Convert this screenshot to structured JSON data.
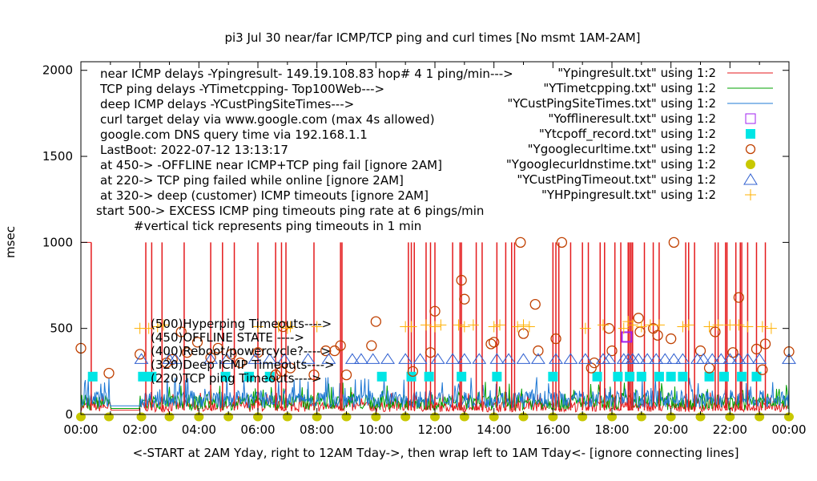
{
  "chart_data": {
    "type": "line",
    "title": "pi3 Jul 30  near/far ICMP/TCP ping and curl times [No msmt 1AM-2AM]",
    "xlabel": "<-START at 2AM Yday, right to 12AM Tday->, then wrap left to 1AM Tday<- [ignore connecting lines]",
    "ylabel": "msec",
    "xlim_hours": [
      0,
      24
    ],
    "ylim": [
      0,
      2050
    ],
    "y_ticks": [
      0,
      500,
      1000,
      1500,
      2000
    ],
    "x_ticks": [
      "00:00",
      "02:00",
      "04:00",
      "06:00",
      "08:00",
      "10:00",
      "12:00",
      "14:00",
      "16:00",
      "18:00",
      "20:00",
      "22:00",
      "00:00"
    ],
    "grid": false,
    "legend_position": "top-right",
    "annotations": [
      "near ICMP delays -Ypingresult- 149.19.108.83 hop# 4 1 ping/min--->",
      "TCP ping delays -YTimetcpping- Top100Web--->",
      "deep ICMP delays -YCustPingSiteTimes--->",
      "curl target delay via www.google.com (max 4s allowed)",
      "google.com DNS query time via 192.168.1.1",
      "LastBoot: 2022-07-12 13:13:17",
      "at 450-> -OFFLINE near ICMP+TCP ping fail [ignore 2AM]",
      "at 220-> TCP ping failed while online [ignore 2AM]",
      "at 320-> deep (customer) ICMP timeouts [ignore 2AM]",
      "start 500-> EXCESS ICMP ping timeouts ping rate at 6 pings/min",
      "#vertical tick represents ping timeouts in 1 min"
    ],
    "inline_labels": [
      "(500)Hyperping Timeouts---->",
      "(450)OFFLINE STATE ---->",
      "(400)Reboot/powercycle?---->",
      "(320)Deep ICMP Timeouts---->",
      "(220)TCP ping Timeouts---->"
    ],
    "series": [
      {
        "name": "\"Ypingresult.txt\" using 1:2",
        "style": "line",
        "color": "#e41a1c",
        "spike_hours_to_1000": [
          0.35,
          2.2,
          2.4,
          2.75,
          3.5,
          4.4,
          4.8,
          5.2,
          6.0,
          6.6,
          6.8,
          6.95,
          7.9,
          8.8,
          8.85,
          11.1,
          11.2,
          11.3,
          11.7,
          11.85,
          12.0,
          12.6,
          12.85,
          12.9,
          13.4,
          13.6,
          14.1,
          14.4,
          14.6,
          14.7,
          16.0,
          16.1,
          16.2,
          16.6,
          17.0,
          17.2,
          17.6,
          17.75,
          18.1,
          18.3,
          18.55,
          18.6,
          18.65,
          18.7,
          19.1,
          19.4,
          19.6,
          20.5,
          20.6,
          20.8,
          21.5,
          21.6,
          21.85,
          21.9,
          22.2,
          22.35,
          22.4,
          22.6,
          22.9,
          23.2
        ],
        "baseline_range_ms": [
          20,
          150
        ]
      },
      {
        "name": "\"YTimetcpping.txt\" using 1:2",
        "style": "line",
        "color": "#00a000",
        "baseline_range_ms": [
          20,
          200
        ]
      },
      {
        "name": "\"YCustPingSiteTimes.txt\" using 1:2",
        "style": "line",
        "color": "#1f78d4",
        "baseline_range_ms": [
          30,
          230
        ]
      },
      {
        "name": "\"Yofflineresult.txt\" using 1:2",
        "style": "open-square",
        "color": "#a020f0",
        "points": [
          [
            18.5,
            450
          ]
        ]
      },
      {
        "name": "\"Ytcpoff_record.txt\" using 1:2",
        "style": "filled-square",
        "color": "#00e5e5",
        "points": [
          [
            0.4,
            220
          ],
          [
            2.1,
            220
          ],
          [
            2.4,
            220
          ],
          [
            4.9,
            220
          ],
          [
            5.7,
            220
          ],
          [
            6.4,
            220
          ],
          [
            10.2,
            220
          ],
          [
            11.2,
            220
          ],
          [
            11.8,
            220
          ],
          [
            12.9,
            220
          ],
          [
            14.1,
            220
          ],
          [
            16.0,
            220
          ],
          [
            17.5,
            220
          ],
          [
            18.2,
            220
          ],
          [
            18.6,
            220
          ],
          [
            19.0,
            220
          ],
          [
            19.6,
            220
          ],
          [
            20.0,
            220
          ],
          [
            20.4,
            220
          ],
          [
            21.3,
            220
          ],
          [
            21.8,
            220
          ],
          [
            22.4,
            220
          ],
          [
            22.9,
            220
          ]
        ]
      },
      {
        "name": "\"Ygooglecurltime.txt\" using 1:2",
        "style": "open-circle",
        "color": "#c04000",
        "points": [
          [
            0,
            385
          ],
          [
            0.95,
            240
          ],
          [
            2.0,
            350
          ],
          [
            2.9,
            300
          ],
          [
            3.1,
            320
          ],
          [
            3.4,
            480
          ],
          [
            3.6,
            360
          ],
          [
            3.95,
            420
          ],
          [
            4.4,
            330
          ],
          [
            4.65,
            385
          ],
          [
            5.1,
            350
          ],
          [
            5.4,
            300
          ],
          [
            6.0,
            360
          ],
          [
            6.6,
            230
          ],
          [
            6.8,
            250
          ],
          [
            6.85,
            510
          ],
          [
            7.1,
            270
          ],
          [
            7.9,
            230
          ],
          [
            8.3,
            370
          ],
          [
            8.6,
            370
          ],
          [
            8.8,
            400
          ],
          [
            9.0,
            230
          ],
          [
            9.85,
            400
          ],
          [
            10.0,
            540
          ],
          [
            11.25,
            250
          ],
          [
            11.85,
            360
          ],
          [
            12.0,
            600
          ],
          [
            12.9,
            780
          ],
          [
            13.0,
            670
          ],
          [
            13.9,
            410
          ],
          [
            14.0,
            420
          ],
          [
            14.9,
            1000
          ],
          [
            15.0,
            470
          ],
          [
            15.4,
            640
          ],
          [
            15.5,
            370
          ],
          [
            16.1,
            440
          ],
          [
            16.3,
            1000
          ],
          [
            17.3,
            270
          ],
          [
            17.4,
            300
          ],
          [
            17.9,
            500
          ],
          [
            18.0,
            370
          ],
          [
            18.9,
            560
          ],
          [
            18.95,
            480
          ],
          [
            19.4,
            500
          ],
          [
            19.55,
            460
          ],
          [
            20.0,
            440
          ],
          [
            20.1,
            1000
          ],
          [
            21.0,
            370
          ],
          [
            21.3,
            270
          ],
          [
            21.5,
            480
          ],
          [
            22.1,
            360
          ],
          [
            22.3,
            680
          ],
          [
            22.9,
            380
          ],
          [
            23.1,
            260
          ],
          [
            23.2,
            410
          ],
          [
            24.0,
            365
          ]
        ]
      },
      {
        "name": "\"Ygooglecurldnstime.txt\" using 1:2",
        "style": "filled-circle",
        "color": "#c8c800",
        "hours": [
          0.0,
          0.95,
          2.05,
          3.0,
          4.0,
          5.0,
          6.0,
          7.0,
          8.0,
          9.0,
          10.0,
          11.0,
          12.0,
          13.0,
          14.0,
          15.0,
          16.0,
          17.0,
          18.0,
          19.0,
          20.0,
          21.0,
          22.0,
          23.0,
          24.0
        ],
        "value_ms": 0
      },
      {
        "name": "\"YCustPingTimeout.txt\" using 1:2",
        "style": "open-triangle",
        "color": "#3060d0",
        "points": [
          [
            2.05,
            320
          ],
          [
            3.0,
            320
          ],
          [
            3.2,
            320
          ],
          [
            4.4,
            320
          ],
          [
            4.95,
            320
          ],
          [
            5.9,
            320
          ],
          [
            6.4,
            320
          ],
          [
            6.9,
            320
          ],
          [
            7.7,
            320
          ],
          [
            8.4,
            320
          ],
          [
            9.2,
            320
          ],
          [
            9.5,
            320
          ],
          [
            9.9,
            320
          ],
          [
            10.4,
            320
          ],
          [
            11.0,
            320
          ],
          [
            11.5,
            320
          ],
          [
            12.1,
            320
          ],
          [
            12.6,
            320
          ],
          [
            13.0,
            320
          ],
          [
            13.5,
            320
          ],
          [
            14.1,
            320
          ],
          [
            14.5,
            320
          ],
          [
            15.0,
            320
          ],
          [
            15.5,
            320
          ],
          [
            16.1,
            320
          ],
          [
            16.6,
            320
          ],
          [
            17.1,
            320
          ],
          [
            17.7,
            320
          ],
          [
            17.9,
            320
          ],
          [
            18.4,
            320
          ],
          [
            18.55,
            320
          ],
          [
            18.7,
            320
          ],
          [
            18.9,
            320
          ],
          [
            19.2,
            320
          ],
          [
            19.5,
            320
          ],
          [
            19.8,
            320
          ],
          [
            20.1,
            320
          ],
          [
            20.4,
            320
          ],
          [
            20.9,
            320
          ],
          [
            21.1,
            320
          ],
          [
            21.4,
            320
          ],
          [
            21.7,
            320
          ],
          [
            22.0,
            320
          ],
          [
            22.3,
            320
          ],
          [
            22.6,
            320
          ],
          [
            23.0,
            320
          ],
          [
            24.0,
            320
          ]
        ]
      },
      {
        "name": "\"YHPpingresult.txt\" using 1:2",
        "style": "plus",
        "color": "#ffb000",
        "points": [
          [
            2.0,
            500
          ],
          [
            2.3,
            500
          ],
          [
            2.6,
            510
          ],
          [
            2.8,
            520
          ],
          [
            6.0,
            510
          ],
          [
            6.7,
            510
          ],
          [
            7.0,
            500
          ],
          [
            7.1,
            510
          ],
          [
            8.0,
            510
          ],
          [
            11.0,
            510
          ],
          [
            11.2,
            510
          ],
          [
            11.7,
            520
          ],
          [
            12.0,
            510
          ],
          [
            12.2,
            520
          ],
          [
            12.8,
            520
          ],
          [
            13.0,
            510
          ],
          [
            13.3,
            520
          ],
          [
            14.0,
            510
          ],
          [
            14.2,
            520
          ],
          [
            14.8,
            510
          ],
          [
            15.0,
            520
          ],
          [
            15.2,
            510
          ],
          [
            17.1,
            500
          ],
          [
            17.7,
            520
          ],
          [
            18.4,
            500
          ],
          [
            18.55,
            540
          ],
          [
            18.7,
            520
          ],
          [
            19.0,
            510
          ],
          [
            19.3,
            520
          ],
          [
            19.6,
            520
          ],
          [
            20.4,
            510
          ],
          [
            20.6,
            520
          ],
          [
            21.3,
            510
          ],
          [
            21.6,
            520
          ],
          [
            22.0,
            520
          ],
          [
            22.3,
            520
          ],
          [
            22.6,
            510
          ],
          [
            23.1,
            510
          ],
          [
            23.4,
            500
          ]
        ]
      }
    ]
  }
}
